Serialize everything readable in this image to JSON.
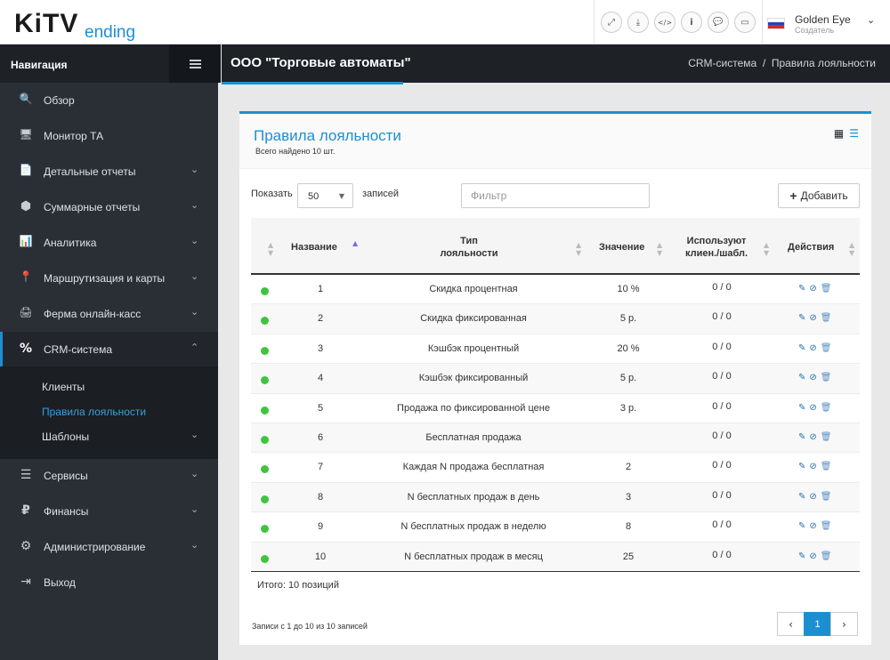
{
  "logo": {
    "part1": "KiTV",
    "part2": "ending"
  },
  "toolbar": {
    "icons": [
      "expand-icon",
      "download-icon",
      "code-icon",
      "info-icon",
      "chat-icon",
      "card-icon"
    ],
    "glyphs": [
      "⤢",
      "⤓",
      "</>",
      "i",
      "💬",
      "▭"
    ]
  },
  "user": {
    "name": "Golden Eye",
    "role": "Создатель",
    "chevron": "⌄"
  },
  "sidebar": {
    "title": "Навигация",
    "items": [
      {
        "label": "Обзор",
        "icon": "search-icon",
        "glyph": "🔍"
      },
      {
        "label": "Монитор ТА",
        "icon": "monitor-icon",
        "glyph": "🖥"
      },
      {
        "label": "Детальные отчеты",
        "icon": "document-icon",
        "glyph": "📄"
      },
      {
        "label": "Суммарные отчеты",
        "icon": "cube-icon",
        "glyph": "⬢"
      },
      {
        "label": "Аналитика",
        "icon": "bar-chart-icon",
        "glyph": "📊"
      },
      {
        "label": "Маршрутизация и карты",
        "icon": "map-pin-icon",
        "glyph": "📍"
      },
      {
        "label": "Ферма онлайн-касс",
        "icon": "cash-register-icon",
        "glyph": "🖨"
      },
      {
        "label": "CRM-система",
        "icon": "percent-icon",
        "glyph": "%"
      },
      {
        "label": "Сервисы",
        "icon": "server-icon",
        "glyph": "☰"
      },
      {
        "label": "Финансы",
        "icon": "ruble-icon",
        "glyph": "₽"
      },
      {
        "label": "Администрирование",
        "icon": "gears-icon",
        "glyph": "⚙"
      },
      {
        "label": "Выход",
        "icon": "logout-icon",
        "glyph": "⇥"
      }
    ],
    "submenu": [
      "Клиенты",
      "Правила лояльности",
      "Шаблоны"
    ]
  },
  "header": {
    "company": "ООО \"Торговые автоматы\"",
    "crumb1": "CRM-система",
    "sep": "/",
    "crumb2": "Правила лояльности"
  },
  "card": {
    "title": "Правила лояльности",
    "subtitle": "Всего найдено 10 шт.",
    "show_label": "Показать",
    "page_size": "50",
    "records_label": "записей",
    "filter_placeholder": "Фильтр",
    "add_label": "Добавить"
  },
  "table": {
    "headers": {
      "name": "Название",
      "type_line1": "Тип",
      "type_line2": "лояльности",
      "value": "Значение",
      "used_line1": "Используют",
      "used_line2": "клиен./шабл.",
      "actions": "Действия"
    },
    "rows": [
      {
        "name": "1",
        "type": "Скидка процентная",
        "value": "10 %",
        "used": "0 / 0"
      },
      {
        "name": "2",
        "type": "Скидка фиксированная",
        "value": "5 р.",
        "used": "0 / 0"
      },
      {
        "name": "3",
        "type": "Кэшбэк процентный",
        "value": "20 %",
        "used": "0 / 0"
      },
      {
        "name": "4",
        "type": "Кэшбэк фиксированный",
        "value": "5 р.",
        "used": "0 / 0"
      },
      {
        "name": "5",
        "type": "Продажа по фиксированной цене",
        "value": "3 р.",
        "used": "0 / 0"
      },
      {
        "name": "6",
        "type": "Бесплатная продажа",
        "value": "",
        "used": "0 / 0"
      },
      {
        "name": "7",
        "type": "Каждая N продажа бесплатная",
        "value": "2",
        "used": "0 / 0"
      },
      {
        "name": "8",
        "type": "N бесплатных продаж в день",
        "value": "3",
        "used": "0 / 0"
      },
      {
        "name": "9",
        "type": "N бесплатных продаж в неделю",
        "value": "8",
        "used": "0 / 0"
      },
      {
        "name": "10",
        "type": "N бесплатных продаж в месяц",
        "value": "25",
        "used": "0 / 0"
      }
    ],
    "total": "Итого: 10 позиций",
    "info": "Записи с 1 до 10 из 10 записей"
  },
  "pagination": {
    "prev": "‹",
    "current": "1",
    "next": "›"
  },
  "colors": {
    "accent": "#1d8fd1",
    "sidebar": "#2a2f36",
    "status_active": "#3fc43f"
  }
}
